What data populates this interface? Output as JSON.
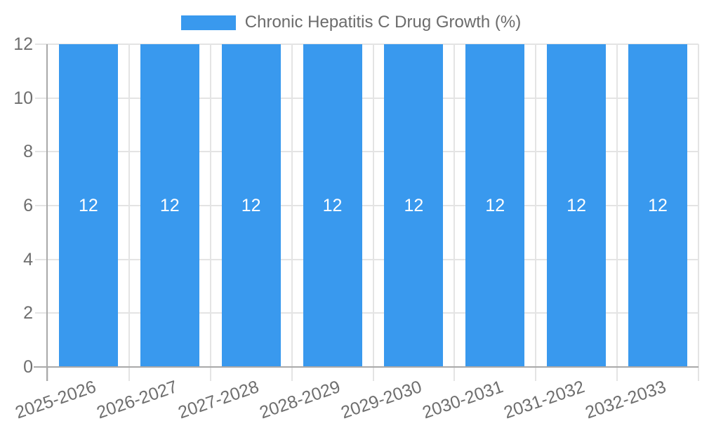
{
  "legend": {
    "label": "Chronic Hepatitis C Drug Growth (%)"
  },
  "chart_data": {
    "type": "bar",
    "title": "Chronic Hepatitis C Drug Growth (%)",
    "categories": [
      "2025-2026",
      "2026-2027",
      "2027-2028",
      "2028-2029",
      "2029-2030",
      "2030-2031",
      "2031-2032",
      "2032-2033"
    ],
    "series": [
      {
        "name": "Chronic Hepatitis C Drug Growth (%)",
        "values": [
          12,
          12,
          12,
          12,
          12,
          12,
          12,
          12
        ]
      }
    ],
    "data_labels": [
      "12",
      "12",
      "12",
      "12",
      "12",
      "12",
      "12",
      "12"
    ],
    "xlabel": "",
    "ylabel": "",
    "ylim": [
      0,
      12
    ],
    "y_ticks": [
      0,
      2,
      4,
      6,
      8,
      10,
      12
    ],
    "grid": true,
    "legend_position": "top",
    "x_tick_rotation_deg": -19,
    "colors": {
      "bar": "#3999ee",
      "bar_label": "#ffffff",
      "axis_text": "#6e6e6e",
      "grid_line": "#e4e4e4",
      "axis_line": "#a9a9a9"
    }
  }
}
